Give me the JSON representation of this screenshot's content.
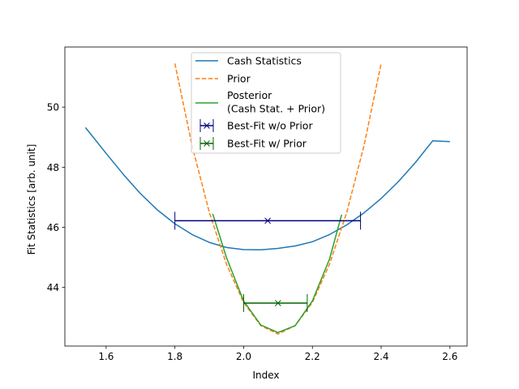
{
  "chart_data": {
    "type": "line",
    "title": "",
    "xlabel": "Index",
    "ylabel": "Fit Statistics [arb. unit]",
    "xlim": [
      1.48,
      2.65
    ],
    "ylim": [
      42.05,
      52.0
    ],
    "xticks": [
      1.6,
      1.8,
      2.0,
      2.2,
      2.4,
      2.6
    ],
    "xtick_labels": [
      "1.6",
      "1.8",
      "2.0",
      "2.2",
      "2.4",
      "2.6"
    ],
    "yticks": [
      44,
      46,
      48,
      50
    ],
    "ytick_labels": [
      "44",
      "46",
      "48",
      "50"
    ],
    "grid": false,
    "legend_position": "top-center",
    "series": [
      {
        "name": "Cash Statistics",
        "color": "#1f77b4",
        "style": "solid",
        "x": [
          1.54,
          1.6,
          1.65,
          1.7,
          1.75,
          1.8,
          1.85,
          1.9,
          1.95,
          2.0,
          2.05,
          2.1,
          2.15,
          2.2,
          2.25,
          2.3,
          2.35,
          2.4,
          2.45,
          2.5,
          2.55,
          2.6
        ],
        "y": [
          49.32,
          48.46,
          47.76,
          47.12,
          46.57,
          46.12,
          45.76,
          45.5,
          45.33,
          45.26,
          45.25,
          45.3,
          45.38,
          45.52,
          45.76,
          46.08,
          46.48,
          46.96,
          47.52,
          48.16,
          48.88,
          48.85
        ]
      },
      {
        "name": "Prior",
        "color": "#ff7f0e",
        "style": "dashed",
        "x": [
          1.8,
          1.85,
          1.9,
          1.95,
          2.0,
          2.05,
          2.1,
          2.15,
          2.2,
          2.25,
          2.3,
          2.35,
          2.4
        ],
        "y": [
          51.45,
          48.71,
          46.5,
          44.78,
          43.5,
          42.73,
          42.45,
          42.73,
          43.5,
          44.78,
          46.5,
          48.71,
          51.45
        ]
      },
      {
        "name": "Posterior\n(Cash Stat. + Prior)",
        "color": "#2ca02c",
        "style": "solid",
        "x": [
          1.91,
          1.95,
          2.0,
          2.05,
          2.1,
          2.15,
          2.2,
          2.25,
          2.285
        ],
        "y": [
          46.45,
          45.0,
          43.55,
          42.75,
          42.5,
          42.73,
          43.55,
          44.95,
          46.42
        ]
      }
    ],
    "errorbars": [
      {
        "name": "Best-Fit w/o Prior",
        "color": "#000080",
        "x": 2.07,
        "y": 46.22,
        "xerr_low": 0.27,
        "xerr_high": 0.27
      },
      {
        "name": "Best-Fit w/ Prior",
        "color": "#006400",
        "x": 2.1,
        "y": 43.48,
        "xerr_low": 0.1,
        "xerr_high": 0.085
      }
    ],
    "legend": [
      "Cash Statistics",
      "Prior",
      "Posterior",
      "(Cash Stat. + Prior)",
      "Best-Fit w/o Prior",
      "Best-Fit w/ Prior"
    ]
  }
}
